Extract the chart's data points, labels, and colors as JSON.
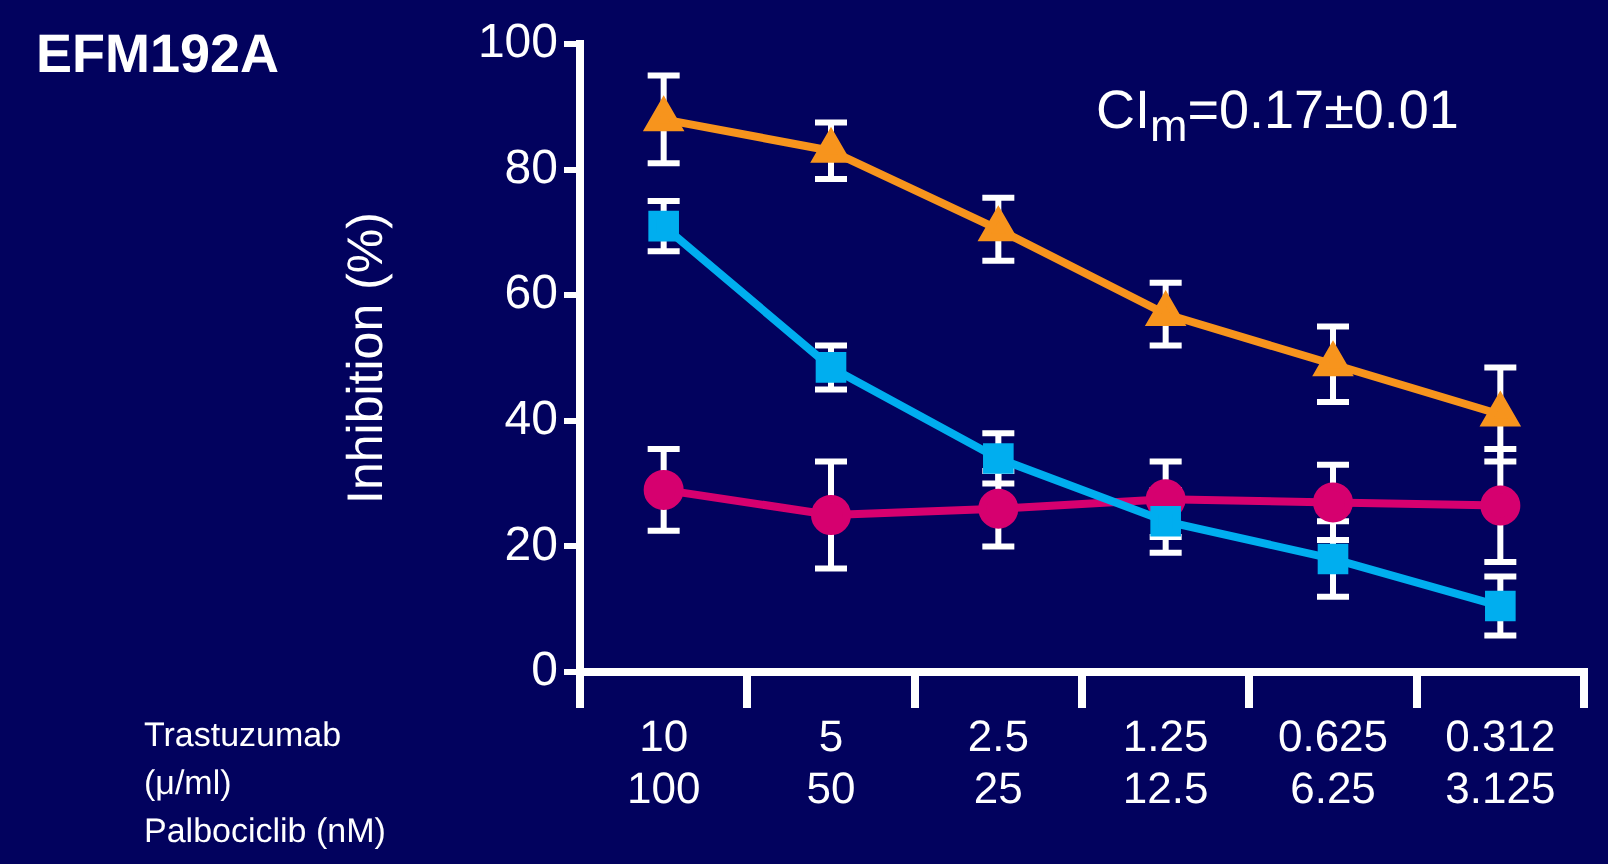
{
  "chart_data": {
    "type": "line",
    "title": "EFM192A",
    "ylabel": "Inhibition (%)",
    "xlabel": "Trastuzumab\n(μ/ml)\nPalbociclib (nM)",
    "annotations": [
      "CI$_{m}$=0.17±0.01"
    ],
    "categories": [
      "10\n100",
      "5\n50",
      "2.5\n25",
      "1.25\n12.5",
      "0.625\n6.25",
      "0.312\n3.125"
    ],
    "ylim": [
      0,
      100
    ],
    "yticks": [
      0,
      20,
      40,
      60,
      80,
      100
    ],
    "grid": false,
    "legend": false,
    "line_style": "solid",
    "series": [
      {
        "color": "#f7941d",
        "marker": "triangle",
        "values": [
          88,
          83,
          70.5,
          57,
          49,
          41
        ],
        "errors": [
          7,
          4.5,
          5,
          5,
          6,
          7.5
        ]
      },
      {
        "color": "#00aeef",
        "marker": "square",
        "values": [
          71,
          48.5,
          34,
          24,
          18,
          10.5
        ],
        "errors": [
          4,
          3.5,
          4,
          5,
          6,
          4.7
        ]
      },
      {
        "color": "#d6006f",
        "marker": "circle",
        "values": [
          29,
          25,
          26,
          27.5,
          27,
          26.5
        ],
        "errors": [
          6.5,
          8.5,
          6,
          6,
          6,
          9
        ]
      }
    ]
  }
}
